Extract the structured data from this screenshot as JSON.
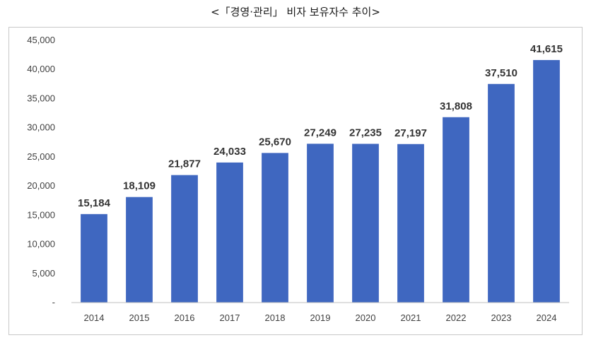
{
  "chart_data": {
    "type": "bar",
    "title": "<「경영·관리」  비자 보유자수 추이>",
    "categories": [
      "2014",
      "2015",
      "2016",
      "2017",
      "2018",
      "2019",
      "2020",
      "2021",
      "2022",
      "2023",
      "2024"
    ],
    "values": [
      15184,
      18109,
      21877,
      24033,
      25670,
      27249,
      27235,
      27197,
      31808,
      37510,
      41615
    ],
    "value_labels": [
      "15,184",
      "18,109",
      "21,877",
      "24,033",
      "25,670",
      "27,249",
      "27,235",
      "27,197",
      "31,808",
      "37,510",
      "41,615"
    ],
    "y_ticks": [
      0,
      5000,
      10000,
      15000,
      20000,
      25000,
      30000,
      35000,
      40000,
      45000
    ],
    "y_tick_labels": [
      "-",
      "5,000",
      "10,000",
      "15,000",
      "20,000",
      "25,000",
      "30,000",
      "35,000",
      "40,000",
      "45,000"
    ],
    "ylim": [
      0,
      45000
    ],
    "xlabel": "",
    "ylabel": "",
    "grid": false,
    "legend": "none",
    "bar_color": "#3F67C0"
  }
}
